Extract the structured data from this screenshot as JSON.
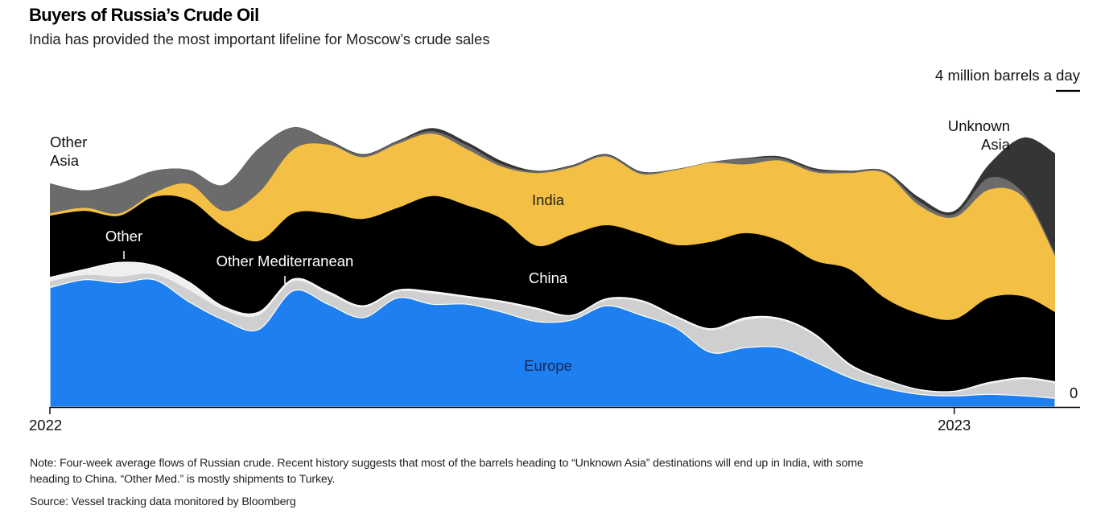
{
  "header": {
    "title": "Buyers of Russia’s Crude Oil",
    "subtitle": "India has provided the most important lifeline for Moscow’s crude sales"
  },
  "footer": {
    "note_line1": "Note: Four-week average flows of Russian crude. Recent history suggests that most of the barrels heading to “Unknown Asia” destinations will end up in India, with some",
    "note_line2": "heading to China. “Other Med.” is mostly shipments to Turkey.",
    "source": "Source: Vessel tracking data monitored by Bloomberg"
  },
  "chart_data": {
    "type": "area",
    "stacked": true,
    "title": "Buyers of Russia’s Crude Oil",
    "subtitle": "India has provided the most important lifeline for Moscow’s crude sales",
    "unit_label": "4 million barrels a day",
    "scale_reference_value": 4,
    "zero_label": "0",
    "ylim": [
      0,
      4
    ],
    "xlabel": "",
    "ylabel": "million barrels a day",
    "x_unit": "weeks since start of 2022",
    "x": [
      0,
      2,
      4,
      6,
      8,
      10,
      12,
      14,
      16,
      18,
      20,
      22,
      24,
      26,
      28,
      30,
      32,
      34,
      36,
      38,
      40,
      42,
      44,
      46,
      48,
      50,
      52,
      54,
      56,
      57.8
    ],
    "xlim": [
      0,
      57.8
    ],
    "x_ticks": [
      {
        "value": 0,
        "label": "2022"
      },
      {
        "value": 52,
        "label": "2023"
      }
    ],
    "grid": false,
    "legend": "inline labels",
    "series": [
      {
        "name": "Europe",
        "label": "Europe",
        "color": "#1e7ff0",
        "label_color": "#12295e",
        "values": [
          1.51,
          1.61,
          1.57,
          1.61,
          1.33,
          1.1,
          0.98,
          1.47,
          1.3,
          1.13,
          1.38,
          1.3,
          1.3,
          1.2,
          1.08,
          1.1,
          1.28,
          1.16,
          1.0,
          0.69,
          0.75,
          0.75,
          0.57,
          0.37,
          0.24,
          0.16,
          0.14,
          0.16,
          0.14,
          0.11
        ]
      },
      {
        "name": "Other Mediterranean",
        "label": "Other Mediterranean",
        "color": "#cfcfcf",
        "label_color": "#ffffff",
        "values": [
          0.08,
          0.06,
          0.08,
          0.07,
          0.15,
          0.13,
          0.18,
          0.12,
          0.13,
          0.13,
          0.08,
          0.13,
          0.08,
          0.12,
          0.15,
          0.05,
          0.07,
          0.17,
          0.13,
          0.28,
          0.35,
          0.35,
          0.33,
          0.15,
          0.1,
          0.05,
          0.05,
          0.13,
          0.21,
          0.19
        ]
      },
      {
        "name": "Other",
        "label": "Other",
        "color": "#efefef",
        "label_color": "#ffffff",
        "values": [
          0.05,
          0.07,
          0.18,
          0.11,
          0.1,
          0.04,
          0.04,
          0.03,
          0.03,
          0.02,
          0.02,
          0.03,
          0.02,
          0.02,
          0.02,
          0.01,
          0.02,
          0.02,
          0.02,
          0.02,
          0.03,
          0.02,
          0.02,
          0.02,
          0.01,
          0.01,
          0.01,
          0.02,
          0.02,
          0.02
        ]
      },
      {
        "name": "China",
        "label": "China",
        "color": "#000000",
        "label_color": "#ffffff",
        "values": [
          0.78,
          0.74,
          0.59,
          0.87,
          1.04,
          1.01,
          0.9,
          0.83,
          0.99,
          1.1,
          1.04,
          1.21,
          1.15,
          1.04,
          0.79,
          1.02,
          0.93,
          0.84,
          0.9,
          1.1,
          1.07,
          0.98,
          0.93,
          1.2,
          1.03,
          0.96,
          0.91,
          1.07,
          1.03,
          0.88
        ]
      },
      {
        "name": "India",
        "label": "India",
        "color": "#f4bf45",
        "label_color": "#222222",
        "values": [
          0.03,
          0.04,
          0.03,
          0.05,
          0.2,
          0.2,
          0.61,
          0.81,
          0.87,
          0.78,
          0.81,
          0.79,
          0.71,
          0.66,
          0.92,
          0.85,
          0.87,
          0.76,
          0.95,
          1.0,
          0.87,
          1.02,
          1.12,
          1.22,
          1.58,
          1.37,
          1.29,
          1.37,
          1.25,
          0.71
        ]
      },
      {
        "name": "Other Asia",
        "label": "Other Asia",
        "color": "#6b6b6b",
        "label_color": "#111111",
        "values": [
          0.38,
          0.22,
          0.38,
          0.28,
          0.18,
          0.33,
          0.56,
          0.28,
          0.05,
          0.03,
          0.03,
          0.03,
          0.05,
          0.03,
          0.02,
          0.02,
          0.02,
          0.02,
          0.01,
          0.01,
          0.07,
          0.03,
          0.03,
          0.02,
          0.02,
          0.05,
          0.04,
          0.15,
          0.05,
          0.03
        ]
      },
      {
        "name": "Unknown Asia",
        "label": "Unknown Asia",
        "color": "#353535",
        "label_color": "#111111",
        "values": [
          0,
          0,
          0,
          0,
          0,
          0,
          0,
          0,
          0.01,
          0.01,
          0.01,
          0.04,
          0.04,
          0.04,
          0.01,
          0.01,
          0.01,
          0.01,
          0,
          0,
          0.01,
          0.02,
          0.02,
          0.01,
          0.01,
          0.05,
          0.04,
          0.17,
          0.71,
          1.27
        ]
      }
    ]
  }
}
